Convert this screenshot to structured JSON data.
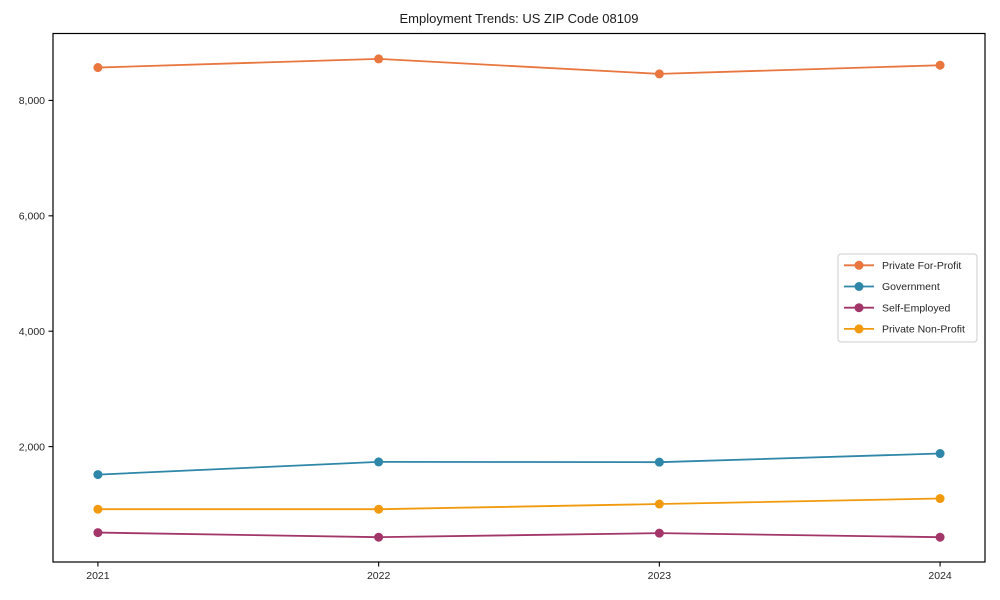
{
  "chart_data": {
    "type": "line",
    "title": "Employment Trends: US ZIP Code 08109",
    "x": [
      2021,
      2022,
      2023,
      2024
    ],
    "x_tick_labels": [
      "2021",
      "2022",
      "2023",
      "2024"
    ],
    "series": [
      {
        "name": "Private For-Profit",
        "color": "#E8763E",
        "values": [
          8570,
          8720,
          8460,
          8610
        ]
      },
      {
        "name": "Government",
        "color": "#2E86A8",
        "values": [
          1515,
          1735,
          1730,
          1880
        ]
      },
      {
        "name": "Self-Employed",
        "color": "#A23669",
        "values": [
          510,
          430,
          500,
          430
        ]
      },
      {
        "name": "Private Non-Profit",
        "color": "#F29A0D",
        "values": [
          915,
          915,
          1005,
          1100
        ]
      }
    ],
    "xlim": [
      2020.84,
      2024.16
    ],
    "ylim": [
      0,
      9160
    ],
    "yticks": [
      2000,
      4000,
      6000,
      8000
    ],
    "ytick_labels": [
      "2,000",
      "4,000",
      "6,000",
      "8,000"
    ],
    "grid": false,
    "legend_position": "center-right",
    "axis_color": "#000000",
    "text_color": "#262626",
    "background": "#ffffff",
    "marker": "circle",
    "marker_radius": 4.5,
    "line_width": 1.8
  }
}
